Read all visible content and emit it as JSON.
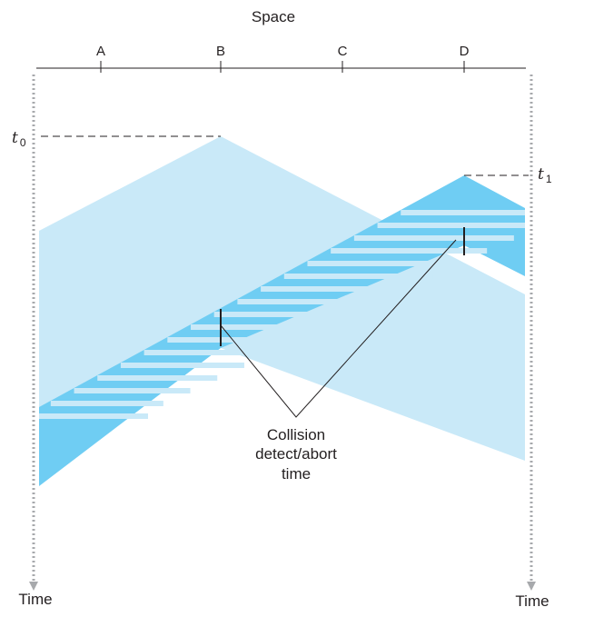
{
  "header": {
    "space_label": "Space",
    "stations": [
      "A",
      "B",
      "C",
      "D"
    ]
  },
  "time_markers": {
    "t0": {
      "symbol": "t",
      "subscript": "0"
    },
    "t1": {
      "symbol": "t",
      "subscript": "1"
    }
  },
  "annotation": {
    "lines": [
      "Collision",
      "detect/abort",
      "time"
    ]
  },
  "footer": {
    "time_left": "Time",
    "time_right": "Time"
  },
  "colors": {
    "light_blue": "#c9e9f8",
    "medium_blue": "#6fcdf3",
    "stroke": "#231f20",
    "dotted_axis": "#a7a9ac"
  }
}
